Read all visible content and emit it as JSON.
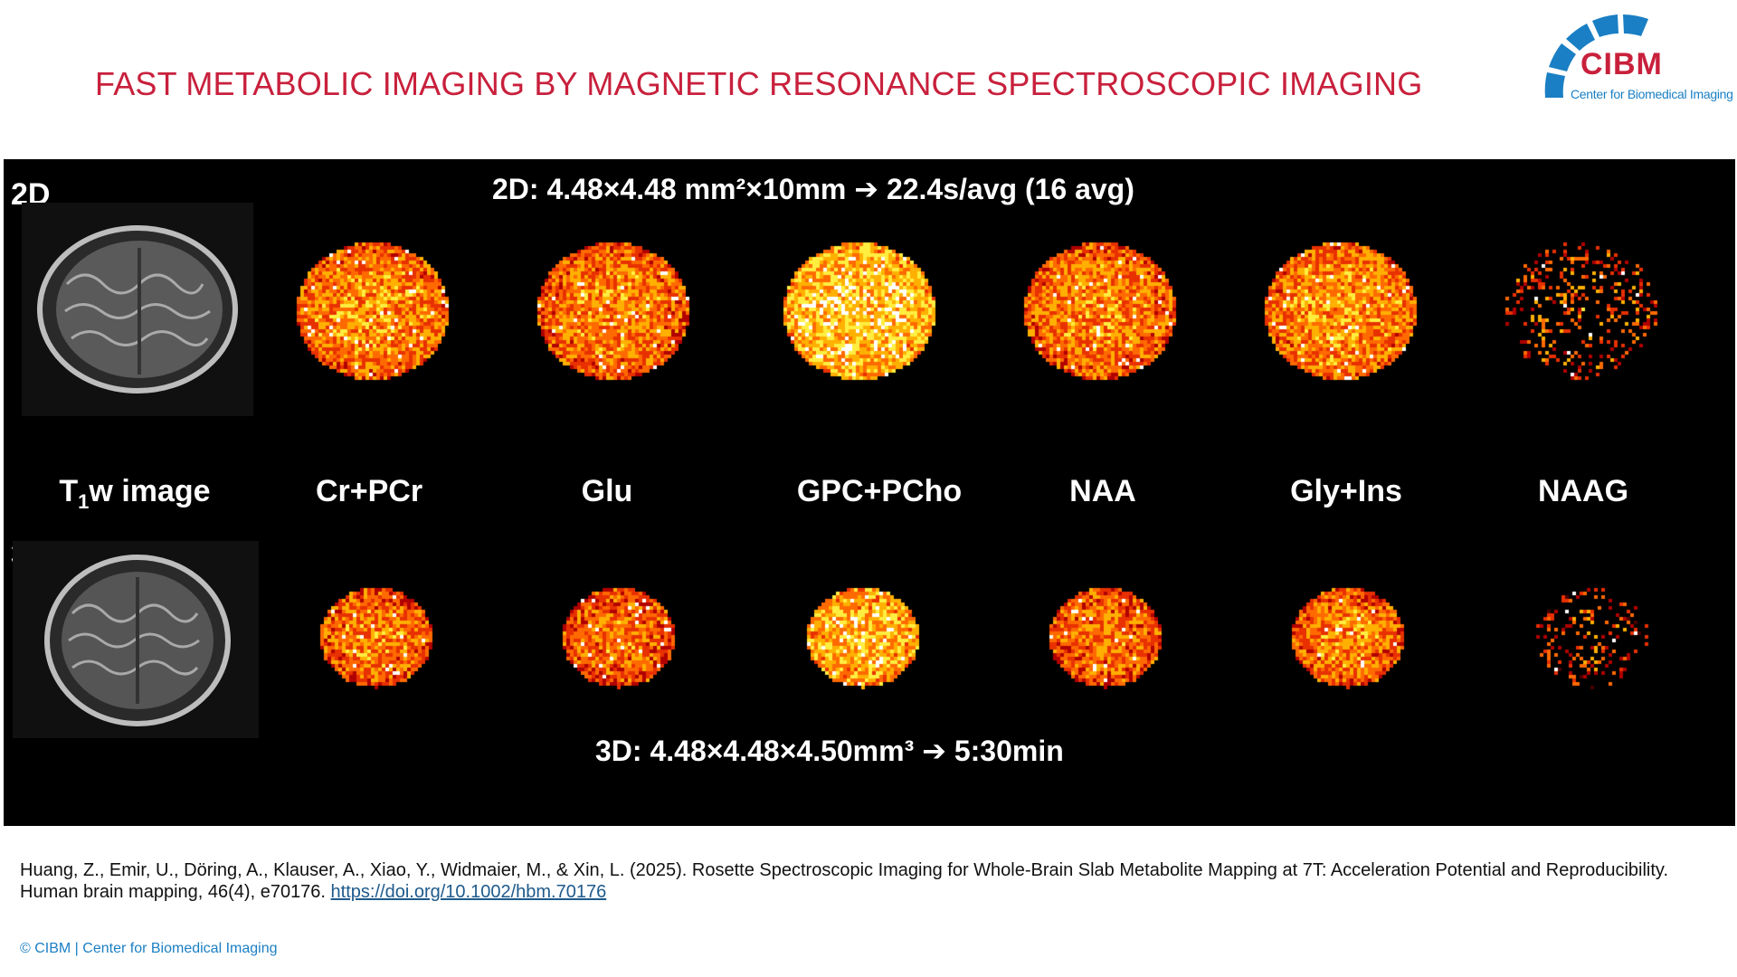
{
  "slide": {
    "title": "FAST METABOLIC IMAGING BY MAGNETIC RESONANCE SPECTROSCOPIC IMAGING"
  },
  "logo": {
    "word": "CIBM",
    "subtitle": "Center for Biomedical Imaging",
    "colors": {
      "red": "#c8203c",
      "blue": "#1a7fc4"
    }
  },
  "figure": {
    "row_2d": {
      "label": "2D",
      "caption": "2D: 4.48×4.48 mm²×10mm ➔ 22.4s/avg (16 avg)"
    },
    "row_3d": {
      "label": "3D",
      "caption": "3D: 4.48×4.48×4.50mm³ ➔ 5:30min"
    },
    "t1_label_main": "T",
    "t1_label_sub": "1",
    "t1_label_rest": "w image",
    "metabolites": [
      "Cr+PCr",
      "Glu",
      "GPC+PCho",
      "NAA",
      "Gly+Ins",
      "NAAG"
    ],
    "colormap": [
      "#4a0000",
      "#b10000",
      "#e83000",
      "#ff6a00",
      "#ffb000",
      "#ffee40",
      "#ffffff"
    ]
  },
  "reference": {
    "text": "Huang, Z., Emir, U., Döring, A., Klauser, A., Xiao, Y., Widmaier, M., & Xin, L. (2025). Rosette Spectroscopic Imaging for Whole-Brain Slab Metabolite Mapping at 7T: Acceleration Potential and Reproducibility. Human brain mapping, 46(4), e70176. ",
    "link": "https://doi.org/10.1002/hbm.70176"
  },
  "footer": {
    "text": "© CIBM | Center for Biomedical Imaging"
  }
}
